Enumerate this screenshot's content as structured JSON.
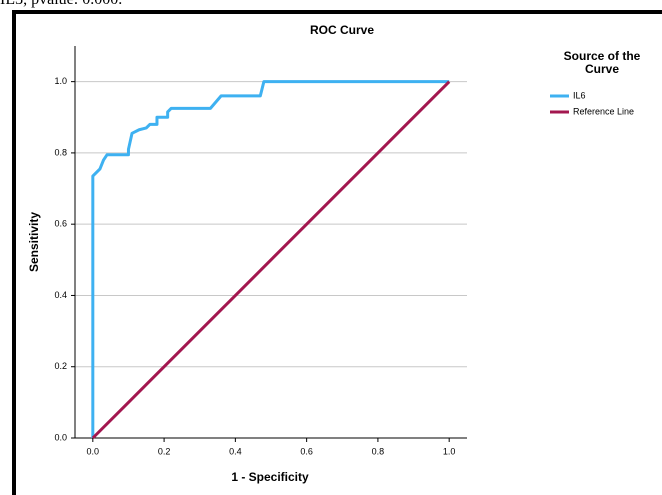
{
  "caption": "IL3, pvalue: 0.000.",
  "chart_data": {
    "type": "line",
    "title": "ROC Curve",
    "x_label": "1 - Specificity",
    "y_label": "Sensitivity",
    "legend_title": "Source of the Curve",
    "legend_position": "right",
    "grid": true,
    "xlim": [
      -0.05,
      1.05
    ],
    "ylim": [
      0,
      1.1
    ],
    "xticks": [
      {
        "value": 0,
        "label": "0.0"
      },
      {
        "value": 0.2,
        "label": "0.2"
      },
      {
        "value": 0.4,
        "label": "0.4"
      },
      {
        "value": 0.6,
        "label": "0.6"
      },
      {
        "value": 0.8,
        "label": "0.8"
      },
      {
        "value": 1,
        "label": "1.0"
      }
    ],
    "yticks": [
      {
        "value": 0,
        "label": "0.0"
      },
      {
        "value": 0.2,
        "label": "0.2"
      },
      {
        "value": 0.4,
        "label": "0.4"
      },
      {
        "value": 0.6,
        "label": "0.6"
      },
      {
        "value": 0.8,
        "label": "0.8"
      },
      {
        "value": 1,
        "label": "1.0"
      }
    ],
    "series": [
      {
        "name": "IL6",
        "color": "#3eb1f1",
        "x": [
          0,
          0,
          0.02,
          0.03,
          0.04,
          0.1,
          0.1,
          0.11,
          0.13,
          0.15,
          0.16,
          0.18,
          0.18,
          0.21,
          0.21,
          0.22,
          0.33,
          0.36,
          0.47,
          0.48,
          1.0
        ],
        "values": [
          0,
          0.735,
          0.755,
          0.78,
          0.795,
          0.795,
          0.81,
          0.855,
          0.865,
          0.87,
          0.88,
          0.88,
          0.9,
          0.9,
          0.915,
          0.925,
          0.925,
          0.96,
          0.96,
          1.0,
          1.0
        ]
      },
      {
        "name": "Reference Line",
        "color": "#a3174f",
        "x": [
          0,
          1
        ],
        "values": [
          0,
          1
        ]
      }
    ]
  }
}
